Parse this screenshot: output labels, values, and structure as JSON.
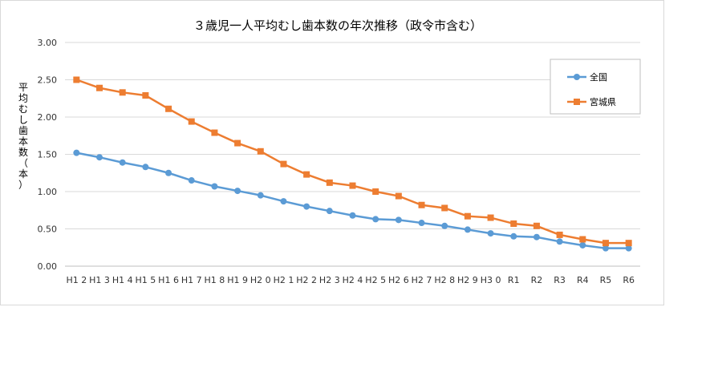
{
  "chart_data": {
    "type": "line",
    "title": "３歳児一人平均むし歯本数の年次推移（政令市含む）",
    "ylabel": "平均むし歯本数（本）",
    "xlabel": "",
    "ylim": [
      0,
      3.0
    ],
    "yticks": [
      "0.00",
      "0.50",
      "1.00",
      "1.50",
      "2.00",
      "2.50",
      "3.00"
    ],
    "ytick_values": [
      0,
      0.5,
      1.0,
      1.5,
      2.0,
      2.5,
      3.0
    ],
    "categories": [
      "H1 2",
      "H1 3",
      "H1 4",
      "H1 5",
      "H1 6",
      "H1 7",
      "H1 8",
      "H1 9",
      "H2 0",
      "H2 1",
      "H2 2",
      "H2 3",
      "H2 4",
      "H2 5",
      "H2 6",
      "H2 7",
      "H2 8",
      "H2 9",
      "H3 0",
      "R1",
      "R2",
      "R3",
      "R4",
      "R5",
      "R6"
    ],
    "category_labels": [
      "H1 2",
      "H1 3",
      "H1 4",
      "H1 5",
      "H1 6",
      "H1 7",
      "H1 8",
      "H1 9",
      "H2 0",
      "H2 1",
      "H2 2",
      "H2 3",
      "H2 4",
      "H2 5",
      "H2 6",
      "H2 7",
      "H2 8",
      "H2 9",
      "H3 0",
      "R1",
      "R2",
      "R3",
      "R4",
      "R5",
      "R6"
    ],
    "grid": true,
    "legend_position": "top-right",
    "series": [
      {
        "name": "全国",
        "color": "#5b9bd5",
        "marker": "circle",
        "values": [
          1.52,
          1.46,
          1.39,
          1.33,
          1.25,
          1.15,
          1.07,
          1.01,
          0.95,
          0.87,
          0.8,
          0.74,
          0.68,
          0.63,
          0.62,
          0.58,
          0.54,
          0.49,
          0.44,
          0.4,
          0.39,
          0.33,
          0.28,
          0.24,
          0.24
        ]
      },
      {
        "name": "宮城県",
        "color": "#ed7d31",
        "marker": "square",
        "values": [
          2.5,
          2.39,
          2.33,
          2.29,
          2.11,
          1.94,
          1.79,
          1.65,
          1.54,
          1.37,
          1.23,
          1.12,
          1.08,
          1.0,
          0.94,
          0.82,
          0.78,
          0.67,
          0.65,
          0.57,
          0.54,
          0.42,
          0.36,
          0.31,
          0.31
        ]
      }
    ]
  }
}
